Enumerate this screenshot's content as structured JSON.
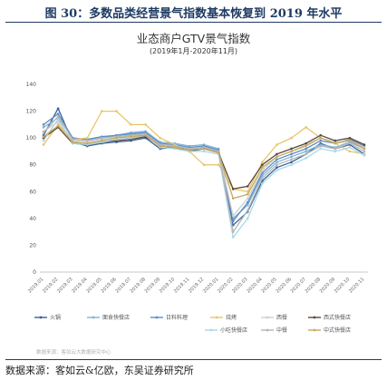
{
  "figure_title": "图 30：多数品类经营景气指数基本恢复到 2019 年水平",
  "source_note": "数据来源：客如云&亿欧，东吴证券研究所",
  "faint_source": "数据来源：客如云大数据研究中心",
  "chart_data": {
    "type": "line",
    "title": "业态商户GTV景气指数",
    "subtitle": "(2019年1月-2020年11月)",
    "ylim": [
      0,
      140
    ],
    "yticks": [
      0,
      20,
      40,
      60,
      80,
      100,
      120,
      140
    ],
    "grid": false,
    "legend_position": "bottom",
    "categories": [
      "2019.01",
      "2019.02",
      "2019.03",
      "2019.04",
      "2019.05",
      "2019.06",
      "2019.07",
      "2019.08",
      "2019.09",
      "2019.10",
      "2019.11",
      "2019.12",
      "2020.01",
      "2020.02",
      "2020.03",
      "2020.04",
      "2020.05",
      "2020.06",
      "2020.07",
      "2020.08",
      "2020.09",
      "2020.10",
      "2020.11"
    ],
    "series": [
      {
        "name": "火锅",
        "color": "#3a5f96",
        "values": [
          102,
          122,
          97,
          94,
          96,
          97,
          98,
          100,
          92,
          93,
          90,
          92,
          90,
          35,
          45,
          68,
          78,
          82,
          88,
          96,
          92,
          95,
          88
        ]
      },
      {
        "name": "面食快餐店",
        "color": "#7fb2d6",
        "values": [
          108,
          115,
          100,
          99,
          100,
          102,
          104,
          105,
          97,
          96,
          94,
          95,
          92,
          40,
          50,
          72,
          82,
          86,
          90,
          95,
          93,
          97,
          92
        ]
      },
      {
        "name": "日料料理",
        "color": "#5b8ec7",
        "values": [
          110,
          118,
          100,
          99,
          101,
          102,
          103,
          104,
          96,
          95,
          93,
          94,
          91,
          38,
          52,
          74,
          84,
          88,
          92,
          98,
          96,
          99,
          94
        ]
      },
      {
        "name": "烧烤",
        "color": "#e8c66b",
        "values": [
          95,
          110,
          99,
          100,
          120,
          120,
          110,
          110,
          100,
          95,
          90,
          80,
          80,
          62,
          60,
          82,
          95,
          100,
          108,
          100,
          96,
          90,
          88
        ]
      },
      {
        "name": "西餐",
        "color": "#cfcfcf",
        "values": [
          105,
          112,
          98,
          97,
          99,
          100,
          101,
          103,
          95,
          94,
          92,
          93,
          90,
          42,
          55,
          76,
          86,
          90,
          95,
          100,
          97,
          98,
          93
        ]
      },
      {
        "name": "西式快餐店",
        "color": "#5a4a3a",
        "values": [
          100,
          108,
          96,
          95,
          97,
          98,
          99,
          101,
          94,
          93,
          91,
          92,
          89,
          62,
          64,
          80,
          88,
          92,
          96,
          102,
          98,
          100,
          95
        ]
      },
      {
        "name": "小吃快餐店",
        "color": "#a8d8e8",
        "values": [
          98,
          114,
          96,
          95,
          97,
          99,
          100,
          102,
          93,
          92,
          90,
          90,
          88,
          26,
          40,
          66,
          76,
          80,
          85,
          92,
          90,
          93,
          87
        ]
      },
      {
        "name": "中餐",
        "color": "#b5b5b5",
        "values": [
          104,
          116,
          99,
          98,
          100,
          101,
          102,
          103,
          95,
          94,
          92,
          93,
          90,
          30,
          46,
          70,
          80,
          84,
          88,
          94,
          92,
          96,
          90
        ]
      },
      {
        "name": "中式快餐店",
        "color": "#c8a860",
        "values": [
          101,
          109,
          97,
          96,
          98,
          100,
          101,
          102,
          94,
          93,
          91,
          92,
          89,
          55,
          58,
          78,
          86,
          90,
          94,
          100,
          96,
          98,
          92
        ]
      }
    ]
  }
}
